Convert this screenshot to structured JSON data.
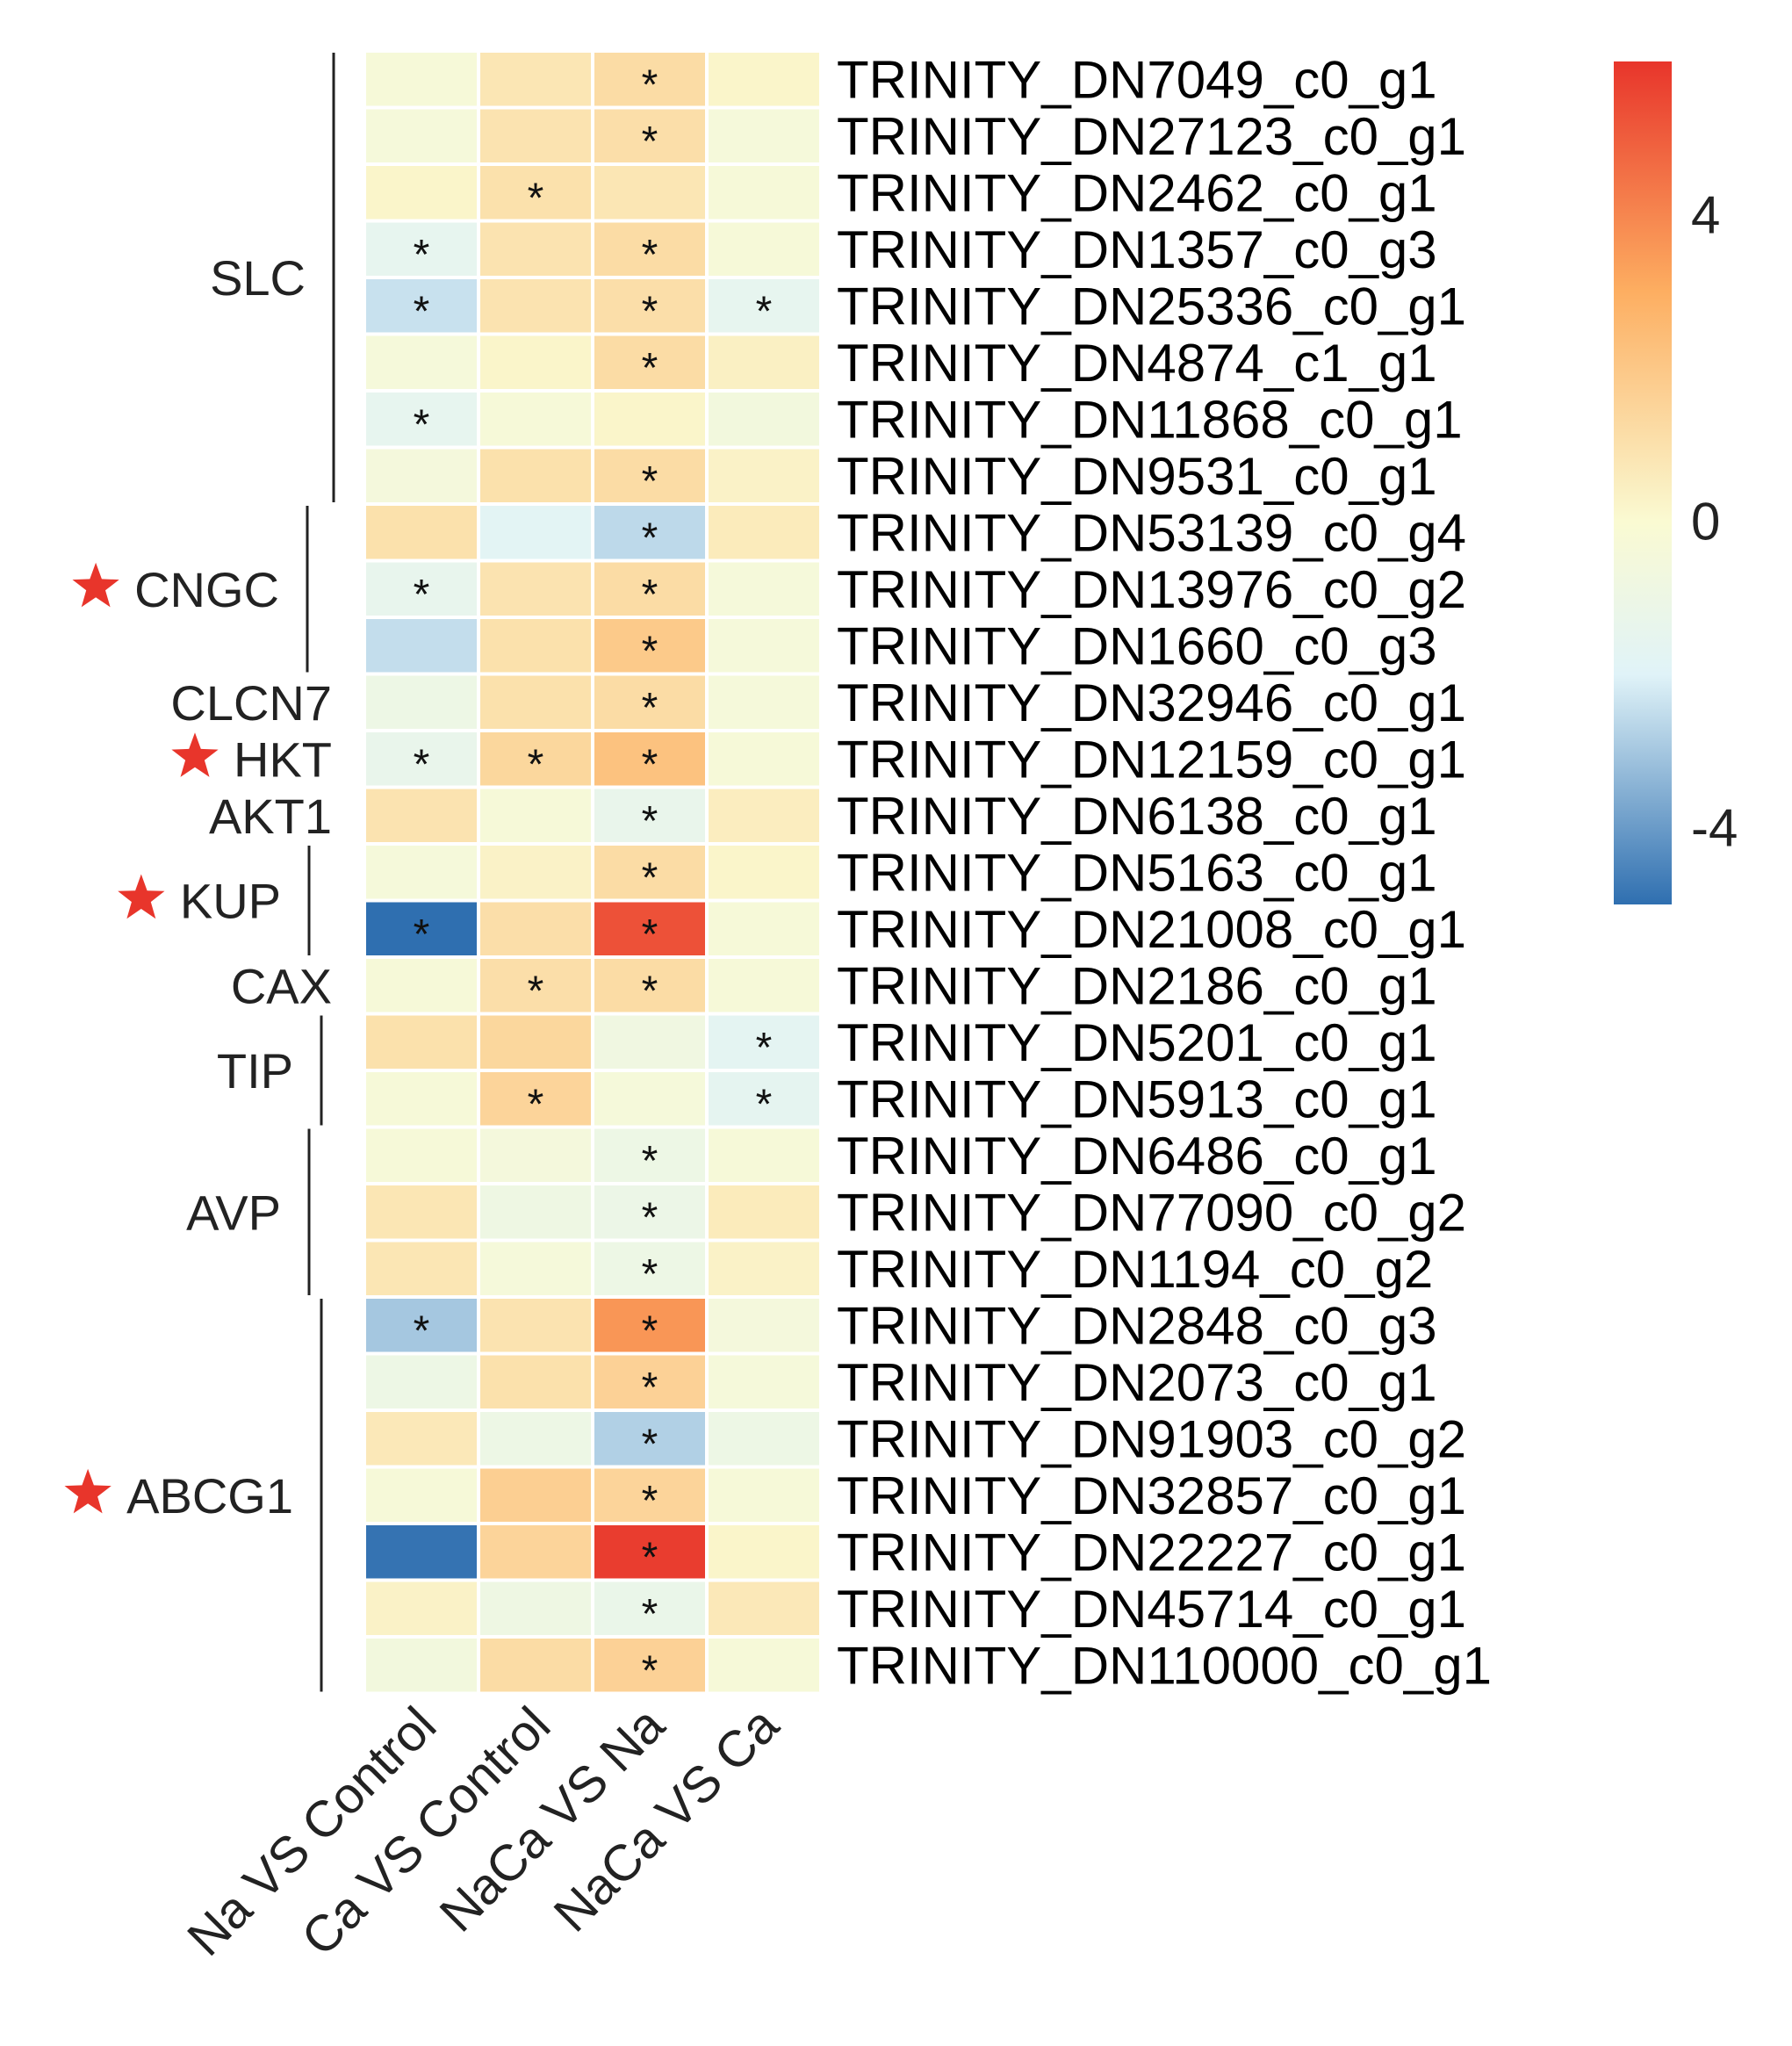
{
  "chart_data": {
    "type": "heatmap",
    "title": "",
    "columns": [
      "Na VS Control",
      "Ca VS Control",
      "NaCa VS Na",
      "NaCa VS Ca"
    ],
    "rows": [
      "TRINITY_DN7049_c0_g1",
      "TRINITY_DN27123_c0_g1",
      "TRINITY_DN2462_c0_g1",
      "TRINITY_DN1357_c0_g3",
      "TRINITY_DN25336_c0_g1",
      "TRINITY_DN4874_c1_g1",
      "TRINITY_DN11868_c0_g1",
      "TRINITY_DN9531_c0_g1",
      "TRINITY_DN53139_c0_g4",
      "TRINITY_DN13976_c0_g2",
      "TRINITY_DN1660_c0_g3",
      "TRINITY_DN32946_c0_g1",
      "TRINITY_DN12159_c0_g1",
      "TRINITY_DN6138_c0_g1",
      "TRINITY_DN5163_c0_g1",
      "TRINITY_DN21008_c0_g1",
      "TRINITY_DN2186_c0_g1",
      "TRINITY_DN5201_c0_g1",
      "TRINITY_DN5913_c0_g1",
      "TRINITY_DN6486_c0_g1",
      "TRINITY_DN77090_c0_g2",
      "TRINITY_DN1194_c0_g2",
      "TRINITY_DN2848_c0_g3",
      "TRINITY_DN2073_c0_g1",
      "TRINITY_DN91903_c0_g2",
      "TRINITY_DN32857_c0_g1",
      "TRINITY_DN22227_c0_g1",
      "TRINITY_DN45714_c0_g1",
      "TRINITY_DN110000_c0_g1"
    ],
    "values": [
      [
        -0.3,
        0.8,
        1.2,
        0.2
      ],
      [
        -0.4,
        0.9,
        1.1,
        -0.4
      ],
      [
        0.2,
        1.0,
        0.8,
        -0.3
      ],
      [
        -1.5,
        0.9,
        1.2,
        -0.3
      ],
      [
        -2.4,
        0.9,
        1.1,
        -1.5
      ],
      [
        -0.4,
        0.2,
        1.2,
        0.4
      ],
      [
        -1.5,
        -0.3,
        0.2,
        -0.6
      ],
      [
        -0.5,
        1.0,
        1.2,
        0.3
      ],
      [
        1.0,
        -1.8,
        -2.6,
        0.6
      ],
      [
        -1.4,
        0.9,
        1.2,
        -0.4
      ],
      [
        -2.5,
        1.0,
        1.9,
        -0.4
      ],
      [
        -1.0,
        1.0,
        1.2,
        -0.4
      ],
      [
        -1.3,
        1.4,
        2.2,
        -0.3
      ],
      [
        0.9,
        -0.3,
        -1.3,
        0.5
      ],
      [
        -0.4,
        0.3,
        1.2,
        0.2
      ],
      [
        -5.0,
        1.1,
        5.3,
        -0.3
      ],
      [
        -0.3,
        1.1,
        1.2,
        -0.3
      ],
      [
        1.0,
        1.4,
        -0.8,
        -1.7
      ],
      [
        -0.3,
        1.5,
        -0.4,
        -1.6
      ],
      [
        -0.3,
        -0.5,
        -1.0,
        -0.3
      ],
      [
        0.8,
        -0.9,
        -1.1,
        0.6
      ],
      [
        0.8,
        -0.4,
        -1.0,
        0.3
      ],
      [
        -3.0,
        0.9,
        3.6,
        -0.5
      ],
      [
        -1.0,
        1.0,
        1.6,
        -0.4
      ],
      [
        0.7,
        -1.0,
        -2.8,
        -1.0
      ],
      [
        -0.3,
        1.7,
        1.5,
        -0.3
      ],
      [
        -4.9,
        1.5,
        5.8,
        0.2
      ],
      [
        0.3,
        -0.9,
        -1.2,
        0.7
      ],
      [
        -0.6,
        1.2,
        1.6,
        -0.3
      ]
    ],
    "significant": [
      [
        false,
        false,
        true,
        false
      ],
      [
        false,
        false,
        true,
        false
      ],
      [
        false,
        true,
        false,
        false
      ],
      [
        true,
        false,
        true,
        false
      ],
      [
        true,
        false,
        true,
        true
      ],
      [
        false,
        false,
        true,
        false
      ],
      [
        true,
        false,
        false,
        false
      ],
      [
        false,
        false,
        true,
        false
      ],
      [
        false,
        false,
        true,
        false
      ],
      [
        true,
        false,
        true,
        false
      ],
      [
        false,
        false,
        true,
        false
      ],
      [
        false,
        false,
        true,
        false
      ],
      [
        true,
        true,
        true,
        false
      ],
      [
        false,
        false,
        true,
        false
      ],
      [
        false,
        false,
        true,
        false
      ],
      [
        true,
        false,
        true,
        false
      ],
      [
        false,
        true,
        true,
        false
      ],
      [
        false,
        false,
        false,
        true
      ],
      [
        false,
        true,
        false,
        true
      ],
      [
        false,
        false,
        true,
        false
      ],
      [
        false,
        false,
        true,
        false
      ],
      [
        false,
        false,
        true,
        false
      ],
      [
        true,
        false,
        true,
        false
      ],
      [
        false,
        false,
        true,
        false
      ],
      [
        false,
        false,
        true,
        false
      ],
      [
        false,
        false,
        true,
        false
      ],
      [
        false,
        false,
        true,
        false
      ],
      [
        false,
        false,
        true,
        false
      ],
      [
        false,
        false,
        true,
        false
      ]
    ],
    "significance_symbol": "*",
    "groups": [
      {
        "label": "SLC",
        "start": 0,
        "end": 7,
        "starred": false
      },
      {
        "label": "CNGC",
        "start": 8,
        "end": 10,
        "starred": true
      },
      {
        "label": "CLCN7",
        "start": 11,
        "end": 11,
        "starred": false
      },
      {
        "label": "HKT",
        "start": 12,
        "end": 12,
        "starred": true
      },
      {
        "label": "AKT1",
        "start": 13,
        "end": 13,
        "starred": false
      },
      {
        "label": "KUP",
        "start": 14,
        "end": 15,
        "starred": true
      },
      {
        "label": "CAX",
        "start": 16,
        "end": 16,
        "starred": false
      },
      {
        "label": "TIP",
        "start": 17,
        "end": 18,
        "starred": false
      },
      {
        "label": "AVP",
        "start": 19,
        "end": 21,
        "starred": false
      },
      {
        "label": "ABCG1",
        "start": 22,
        "end": 28,
        "starred": true
      }
    ],
    "colorbar": {
      "min": -5,
      "max": 6,
      "ticks": [
        4,
        0,
        -4
      ],
      "tick_labels": [
        "4",
        "0",
        "-4"
      ],
      "colors": [
        "#2f6fb0",
        "#e0f3f8",
        "#fafad2",
        "#fdae61",
        "#e8352b"
      ]
    },
    "star_color": "#e8352b"
  }
}
